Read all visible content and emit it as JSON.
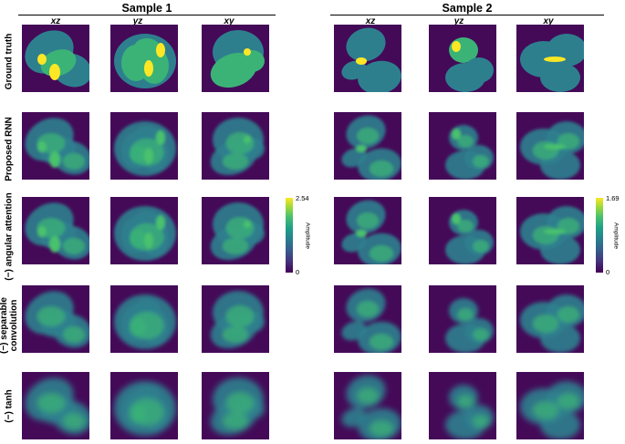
{
  "samples": [
    {
      "title": "Sample 1",
      "columns": [
        "xz",
        "yz",
        "xy"
      ],
      "colorbar": {
        "max": "2.54",
        "min": "0",
        "label": "Amplitude"
      }
    },
    {
      "title": "Sample 2",
      "columns": [
        "xz",
        "yz",
        "xy"
      ],
      "colorbar": {
        "max": "1.69",
        "min": "0",
        "label": "Amplitude"
      }
    }
  ],
  "rows": [
    {
      "label_lines": [
        "Ground truth"
      ]
    },
    {
      "label_lines": [
        "Proposed RNN"
      ]
    },
    {
      "label_lines": [
        "(−) angular attention"
      ]
    },
    {
      "label_lines": [
        "(−) separable",
        "convolution"
      ]
    },
    {
      "label_lines": [
        "(−) tanh"
      ]
    }
  ],
  "colors": {
    "background": "#440a58",
    "teal": "#2e7f8e",
    "green": "#3bb377",
    "bright_green": "#4ac16d",
    "yellow": "#fde725"
  }
}
